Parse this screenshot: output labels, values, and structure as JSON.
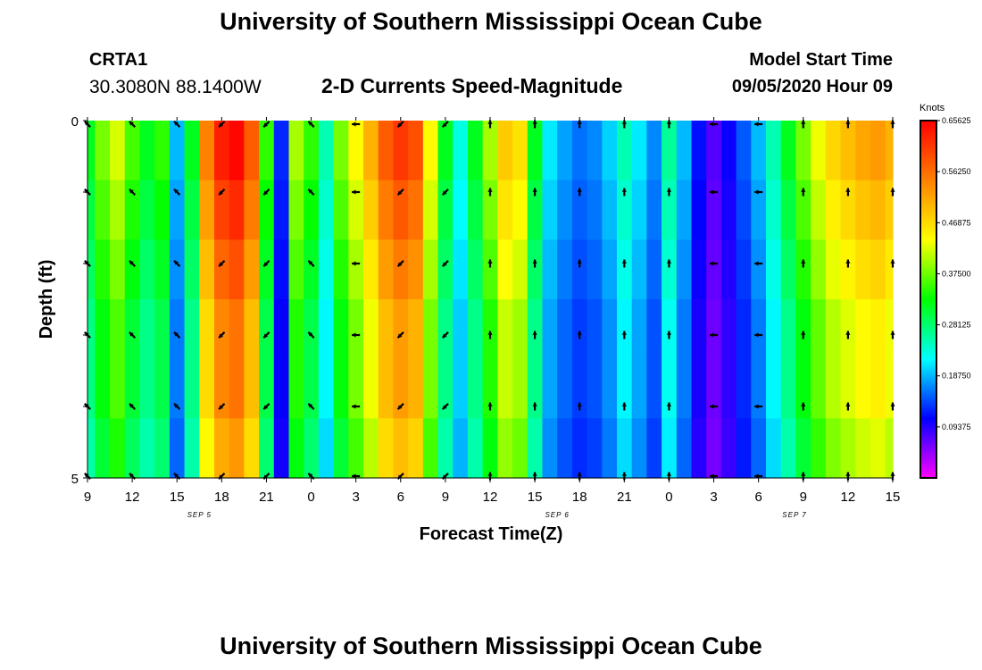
{
  "header": {
    "title": "University of Southern Mississippi Ocean Cube",
    "station_id": "CRTA1",
    "station_coords": "30.3080N 88.1400W",
    "subtitle": "2-D Currents Speed-Magnitude",
    "model_start_label": "Model Start Time",
    "model_start_value": "09/05/2020 Hour 09"
  },
  "footer": {
    "title": "University of Southern Mississippi Ocean Cube"
  },
  "chart_data": {
    "type": "heatmap",
    "title": "2-D Currents Speed-Magnitude",
    "xlabel": "Forecast Time(Z)",
    "ylabel": "Depth (ft)",
    "x_start_hour": 9,
    "x_end_hour": 63,
    "x_tick_labels": [
      "9",
      "12",
      "15",
      "18",
      "21",
      "0",
      "3",
      "6",
      "9",
      "12",
      "15",
      "18",
      "21",
      "0",
      "3",
      "6",
      "9",
      "12",
      "15"
    ],
    "date_labels": [
      {
        "label": "SEP 5",
        "hour": 16.5
      },
      {
        "label": "SEP 6",
        "hour": 40.5
      },
      {
        "label": "SEP 7",
        "hour": 64.5
      }
    ],
    "y_range": [
      0,
      5
    ],
    "y_tick_labels": [
      "0",
      "5"
    ],
    "depth_levels": 5,
    "units": "Knots",
    "colorbar": {
      "units": "Knots",
      "min": 0.0,
      "max": 0.65625,
      "tick_labels": [
        "0.65625",
        "0.56250",
        "0.46875",
        "0.37500",
        "0.28125",
        "0.18750",
        "0.09375"
      ],
      "tick_values": [
        0.65625,
        0.5625,
        0.46875,
        0.375,
        0.28125,
        0.1875,
        0.09375
      ]
    },
    "color_stops": [
      "#ff00ff",
      "#8000ff",
      "#0000ff",
      "#0080ff",
      "#00ffff",
      "#00ff80",
      "#00ff00",
      "#80ff00",
      "#ffff00",
      "#ffc000",
      "#ff8000",
      "#ff4000",
      "#ff0000"
    ],
    "speed_profile": {
      "hours": [
        9,
        10,
        11,
        12,
        13,
        14,
        15,
        16,
        17,
        18,
        19,
        20,
        21,
        22,
        23,
        24,
        25,
        26,
        27,
        28,
        29,
        30,
        31,
        32,
        33,
        34,
        35,
        36,
        37,
        38,
        39,
        40,
        41,
        42,
        43,
        44,
        45,
        46,
        47,
        48,
        49,
        50,
        51,
        52,
        53,
        54,
        55,
        56,
        57,
        58,
        59,
        60,
        61,
        62,
        63
      ],
      "knots": [
        0.3,
        0.36,
        0.4,
        0.34,
        0.3,
        0.33,
        0.18,
        0.3,
        0.52,
        0.6,
        0.62,
        0.55,
        0.33,
        0.12,
        0.38,
        0.33,
        0.24,
        0.36,
        0.42,
        0.48,
        0.55,
        0.58,
        0.56,
        0.42,
        0.3,
        0.22,
        0.3,
        0.38,
        0.46,
        0.44,
        0.3,
        0.2,
        0.17,
        0.15,
        0.16,
        0.19,
        0.24,
        0.2,
        0.16,
        0.25,
        0.18,
        0.11,
        0.07,
        0.1,
        0.14,
        0.18,
        0.24,
        0.3,
        0.36,
        0.41,
        0.45,
        0.47,
        0.49,
        0.5,
        0.48
      ]
    },
    "depth_factors": [
      1.05,
      1.0,
      0.95,
      0.9,
      0.9,
      0.85
    ],
    "arrows": {
      "hours": [
        9,
        12,
        15,
        18,
        21,
        24,
        27,
        30,
        33,
        36,
        39,
        42,
        45,
        48,
        51,
        54,
        57,
        60,
        63
      ],
      "depth_rows": [
        0,
        1,
        2,
        3,
        4,
        5
      ],
      "directions_deg": [
        225,
        225,
        225,
        135,
        135,
        225,
        180,
        135,
        135,
        270,
        270,
        270,
        270,
        270,
        180,
        180,
        270,
        270,
        270
      ]
    }
  }
}
